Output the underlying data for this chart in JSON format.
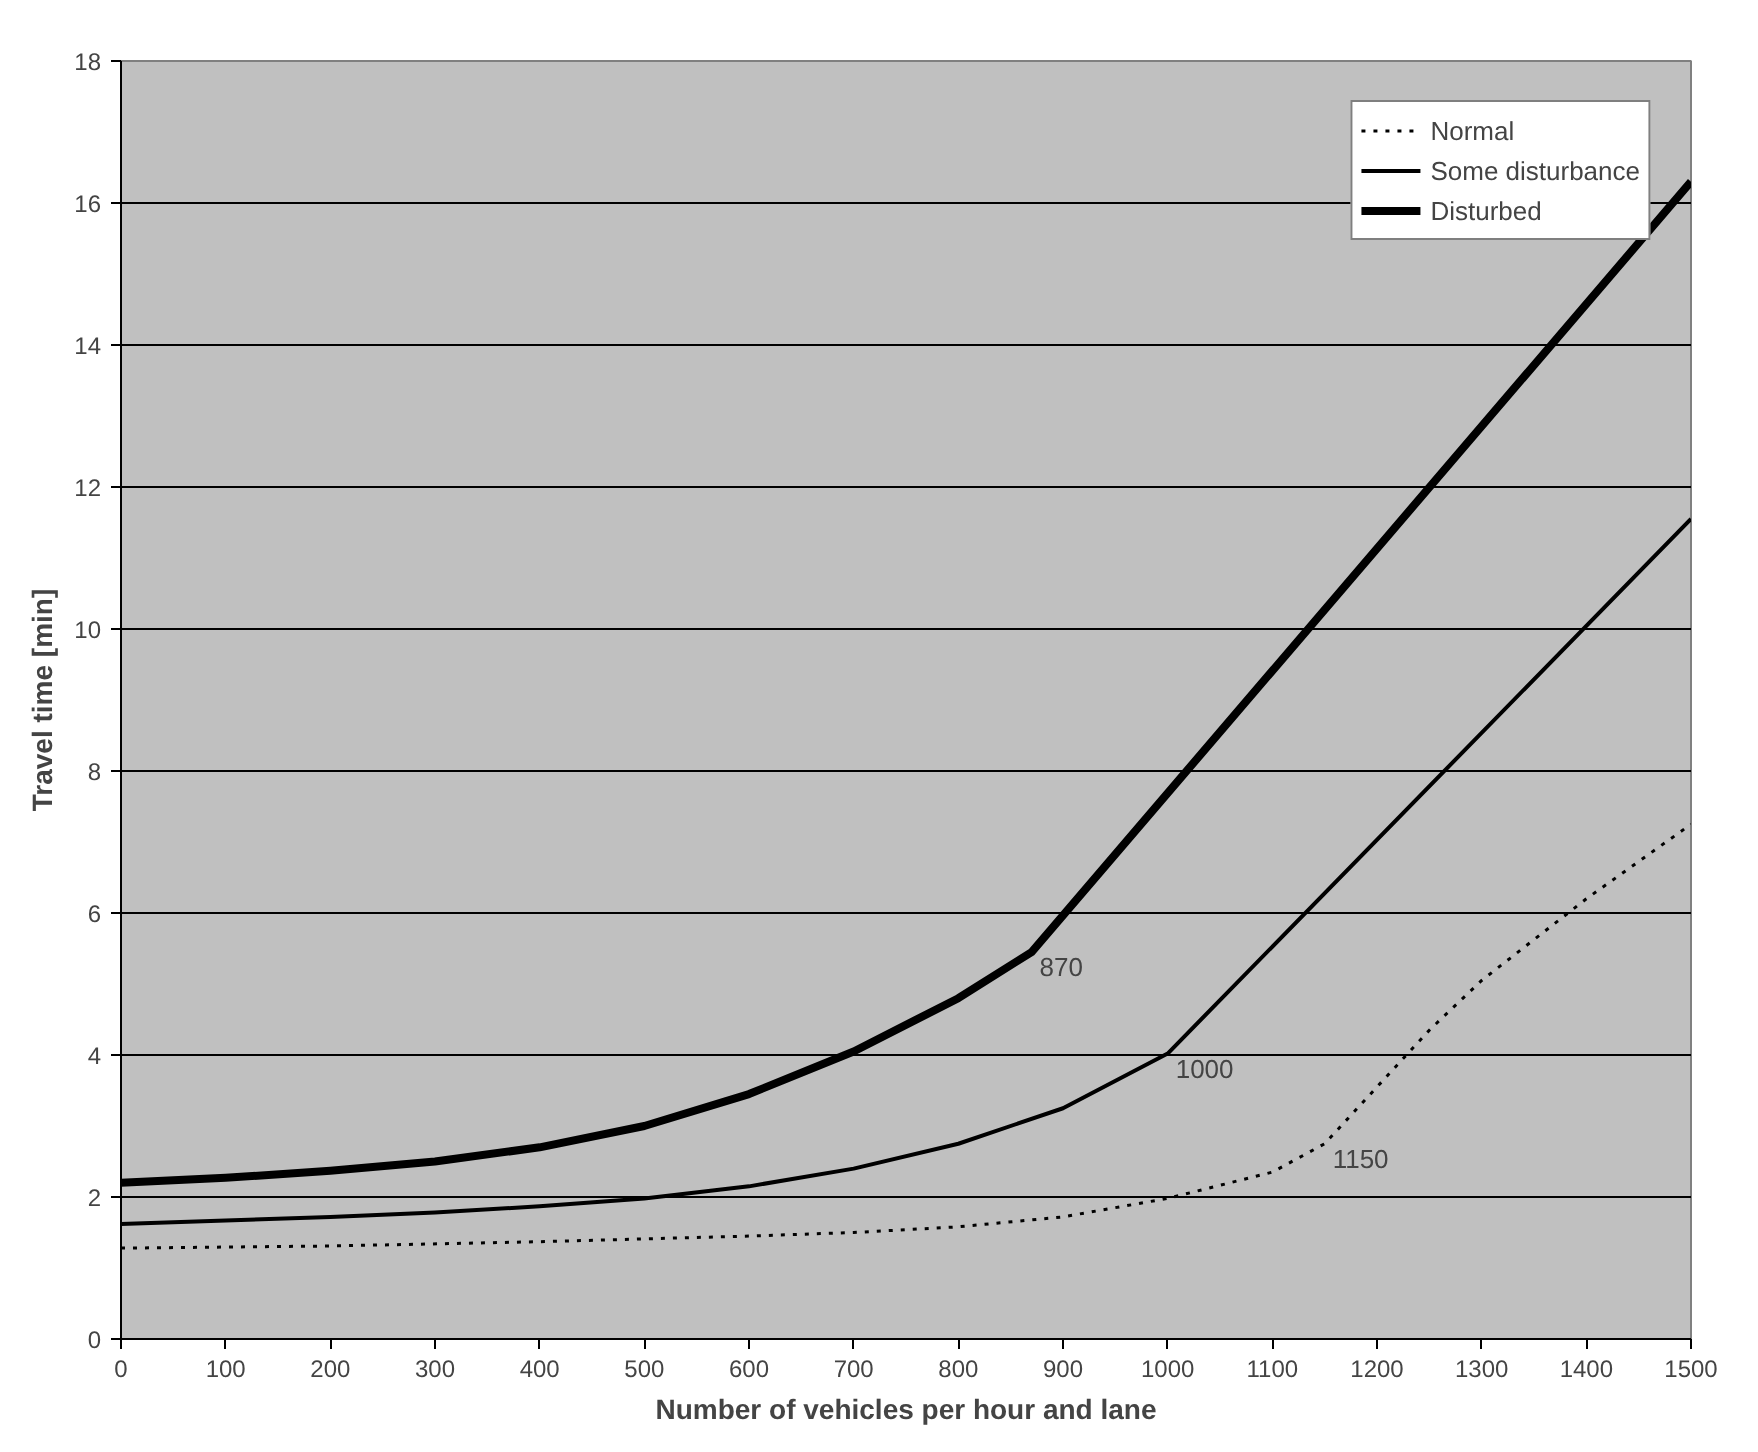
{
  "chart_data": {
    "type": "line",
    "xlabel": "Number of vehicles per hour and lane",
    "ylabel": "Travel time [min]",
    "xlim": [
      0,
      1500
    ],
    "xticks": [
      0,
      100,
      200,
      300,
      400,
      500,
      600,
      700,
      800,
      900,
      1000,
      1100,
      1200,
      1300,
      1400,
      1500
    ],
    "ylim": [
      0,
      18
    ],
    "yticks": [
      0,
      2,
      4,
      6,
      8,
      10,
      12,
      14,
      16,
      18
    ],
    "grid": "y",
    "legend": "top right",
    "marker": "none",
    "series": [
      {
        "name": "Normal",
        "color": "#000000",
        "line_style": "dotted",
        "x": [
          0,
          200,
          400,
          600,
          700,
          800,
          900,
          1000,
          1100,
          1150,
          1200,
          1250,
          1300,
          1400,
          1500
        ],
        "values": [
          1.28,
          1.31,
          1.37,
          1.45,
          1.5,
          1.58,
          1.72,
          1.98,
          2.35,
          2.75,
          3.55,
          4.35,
          5.05,
          6.2,
          7.25
        ]
      },
      {
        "name": "Some disturbance",
        "color": "#000000",
        "line_style": "solid",
        "x": [
          0,
          100,
          200,
          300,
          400,
          500,
          600,
          700,
          800,
          900,
          1000,
          1500
        ],
        "values": [
          1.62,
          1.67,
          1.72,
          1.78,
          1.87,
          1.98,
          2.15,
          2.4,
          2.75,
          3.25,
          4.02,
          11.55
        ]
      },
      {
        "name": "Disturbed",
        "color": "#000000",
        "line_style": "solid",
        "x": [
          0,
          100,
          200,
          300,
          400,
          500,
          600,
          700,
          800,
          870,
          1500
        ],
        "values": [
          2.2,
          2.27,
          2.37,
          2.5,
          2.7,
          3.0,
          3.45,
          4.05,
          4.8,
          5.45,
          16.3
        ]
      }
    ],
    "annotations": [
      {
        "text": "870",
        "x": 870,
        "y": 5.45
      },
      {
        "text": "1000",
        "x": 1000,
        "y": 4.02
      },
      {
        "text": "1150",
        "x": 1150,
        "y": 2.75
      }
    ]
  }
}
